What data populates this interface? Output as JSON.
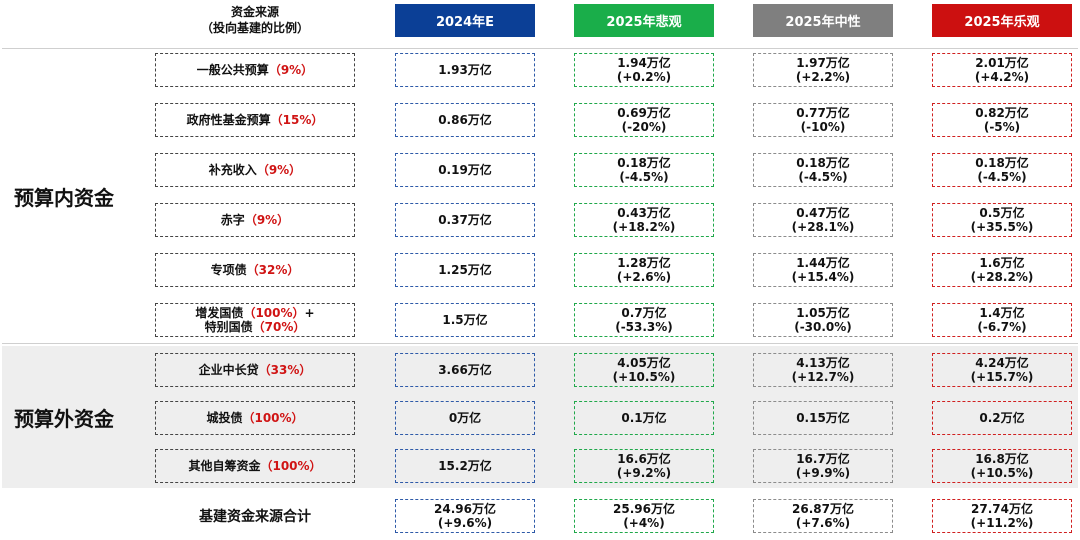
{
  "header": {
    "source_title_line1": "资金来源",
    "source_title_line2": "（投向基建的比例）",
    "columns": [
      {
        "label": "2024年E",
        "color": "#0b3f96"
      },
      {
        "label": "2025年悲观",
        "color": "#1aae4a"
      },
      {
        "label": "2025年中性",
        "color": "#7f7f7f"
      },
      {
        "label": "2025年乐观",
        "color": "#cc1010"
      }
    ]
  },
  "sections": {
    "in_budget": "预算内资金",
    "off_budget": "预算外资金"
  },
  "rows": [
    {
      "name": "一般公共预算",
      "pct": "（9%）",
      "vals": [
        [
          "1.93万亿",
          ""
        ],
        [
          "1.94万亿",
          "(+0.2%)"
        ],
        [
          "1.97万亿",
          "(+2.2%)"
        ],
        [
          "2.01万亿",
          "(+4.2%)"
        ]
      ]
    },
    {
      "name": "政府性基金预算",
      "pct": "（15%）",
      "vals": [
        [
          "0.86万亿",
          ""
        ],
        [
          "0.69万亿",
          "(-20%)"
        ],
        [
          "0.77万亿",
          "(-10%)"
        ],
        [
          "0.82万亿",
          "(-5%)"
        ]
      ]
    },
    {
      "name": "补充收入",
      "pct": "（9%）",
      "vals": [
        [
          "0.19万亿",
          ""
        ],
        [
          "0.18万亿",
          "(-4.5%)"
        ],
        [
          "0.18万亿",
          "(-4.5%)"
        ],
        [
          "0.18万亿",
          "(-4.5%)"
        ]
      ]
    },
    {
      "name": "赤字",
      "pct": "（9%）",
      "vals": [
        [
          "0.37万亿",
          ""
        ],
        [
          "0.43万亿",
          "(+18.2%)"
        ],
        [
          "0.47万亿",
          "(+28.1%)"
        ],
        [
          "0.5万亿",
          "(+35.5%)"
        ]
      ]
    },
    {
      "name": "专项债",
      "pct": "（32%）",
      "vals": [
        [
          "1.25万亿",
          ""
        ],
        [
          "1.28万亿",
          "(+2.6%)"
        ],
        [
          "1.44万亿",
          "(+15.4%)"
        ],
        [
          "1.6万亿",
          "(+28.2%)"
        ]
      ]
    },
    {
      "name": "增发国债",
      "pct": "（100%）",
      "name_suffix": "+",
      "name2": "特别国债",
      "pct2": "（70%）",
      "vals": [
        [
          "1.5万亿",
          ""
        ],
        [
          "0.7万亿",
          "(-53.3%)"
        ],
        [
          "1.05万亿",
          "(-30.0%)"
        ],
        [
          "1.4万亿",
          "(-6.7%)"
        ]
      ]
    },
    {
      "name": "企业中长贷",
      "pct": "（33%）",
      "vals": [
        [
          "3.66万亿",
          ""
        ],
        [
          "4.05万亿",
          "(+10.5%)"
        ],
        [
          "4.13万亿",
          "(+12.7%)"
        ],
        [
          "4.24万亿",
          "(+15.7%)"
        ]
      ]
    },
    {
      "name": "城投债",
      "pct": "（100%）",
      "vals": [
        [
          "0万亿",
          ""
        ],
        [
          "0.1万亿",
          ""
        ],
        [
          "0.15万亿",
          ""
        ],
        [
          "0.2万亿",
          ""
        ]
      ]
    },
    {
      "name": "其他自筹资金",
      "pct": "（100%）",
      "vals": [
        [
          "15.2万亿",
          ""
        ],
        [
          "16.6万亿",
          "(+9.2%)"
        ],
        [
          "16.7万亿",
          "(+9.9%)"
        ],
        [
          "16.8万亿",
          "(+10.5%)"
        ]
      ]
    }
  ],
  "total": {
    "label": "基建资金来源合计",
    "vals": [
      [
        "24.96万亿",
        "(+9.6%)"
      ],
      [
        "25.96万亿",
        "(+4%)"
      ],
      [
        "26.87万亿",
        "(+7.6%)"
      ],
      [
        "27.74万亿",
        "(+11.2%)"
      ]
    ]
  }
}
